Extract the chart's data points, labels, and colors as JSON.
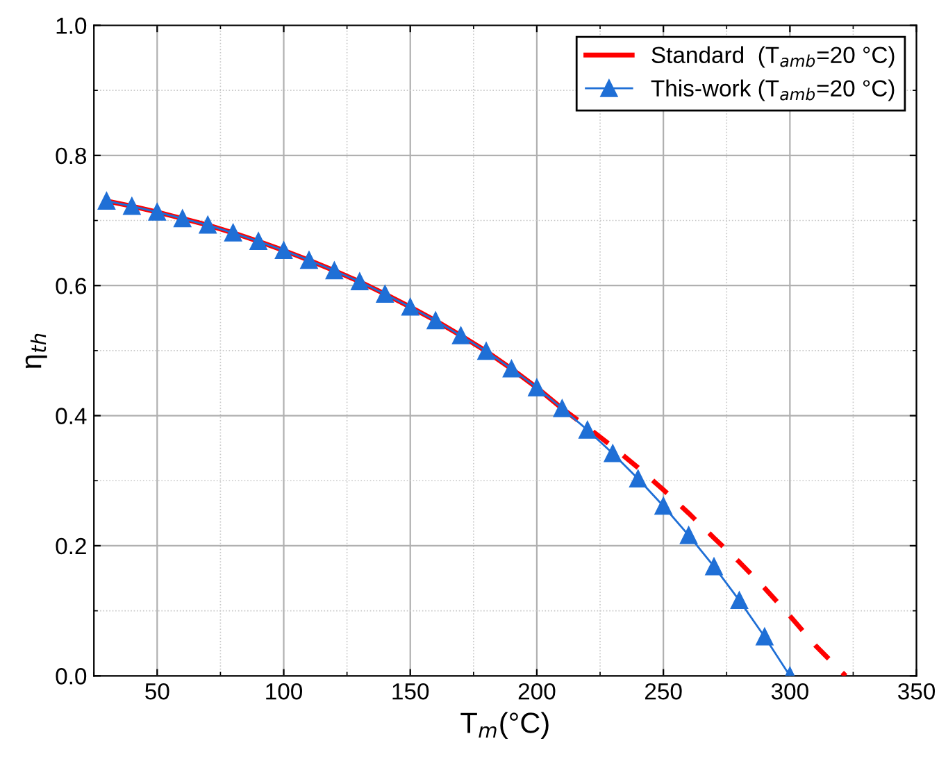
{
  "chart_data": {
    "type": "line",
    "xlabel": "T$_{m}$(°C)",
    "ylabel": "η$_{th}$",
    "xlim": [
      25,
      350
    ],
    "xticks": [
      50,
      100,
      150,
      200,
      250,
      300,
      350
    ],
    "ylim": [
      0,
      1.0
    ],
    "yticks": [
      {
        "value": 0,
        "label": "0.0"
      },
      0.2,
      0.4,
      0.6,
      0.8,
      {
        "value": 1,
        "label": "1.0"
      }
    ],
    "grid": true,
    "legend": "top right",
    "series": [
      {
        "name": "Standard  (T$_{amb}$=20 °C)",
        "color": "#ff0000",
        "line_style": "solid",
        "marker": "none",
        "x": [
          30,
          40,
          50,
          60,
          70,
          80,
          90,
          100,
          110,
          120,
          130,
          140,
          150,
          160,
          170,
          180,
          190,
          200,
          210
        ],
        "values": [
          0.73,
          0.722,
          0.713,
          0.703,
          0.693,
          0.681,
          0.668,
          0.654,
          0.639,
          0.623,
          0.606,
          0.587,
          0.567,
          0.546,
          0.523,
          0.499,
          0.472,
          0.443,
          0.411
        ]
      },
      {
        "color": "#ff0000",
        "line_style": "dashed",
        "marker": "none",
        "x": [
          210,
          220,
          230,
          240,
          250,
          260,
          270,
          280,
          290,
          300,
          310,
          322
        ],
        "values": [
          0.411,
          0.382,
          0.352,
          0.32,
          0.286,
          0.25,
          0.212,
          0.175,
          0.135,
          0.092,
          0.047,
          0.0
        ]
      },
      {
        "name": "This-work (T$_{amb}$=20 °C)",
        "color": "#1f6fd6",
        "line_style": "solid",
        "marker": "triangle",
        "x": [
          30,
          40,
          50,
          60,
          70,
          80,
          90,
          100,
          110,
          120,
          130,
          140,
          150,
          160,
          170,
          180,
          190,
          200,
          210,
          220,
          230,
          240,
          250,
          260,
          270,
          280,
          290,
          300
        ],
        "values": [
          0.73,
          0.722,
          0.713,
          0.703,
          0.693,
          0.681,
          0.668,
          0.654,
          0.639,
          0.623,
          0.606,
          0.587,
          0.567,
          0.546,
          0.523,
          0.499,
          0.472,
          0.443,
          0.411,
          0.378,
          0.342,
          0.303,
          0.261,
          0.216,
          0.168,
          0.116,
          0.06,
          0.0
        ]
      }
    ]
  }
}
